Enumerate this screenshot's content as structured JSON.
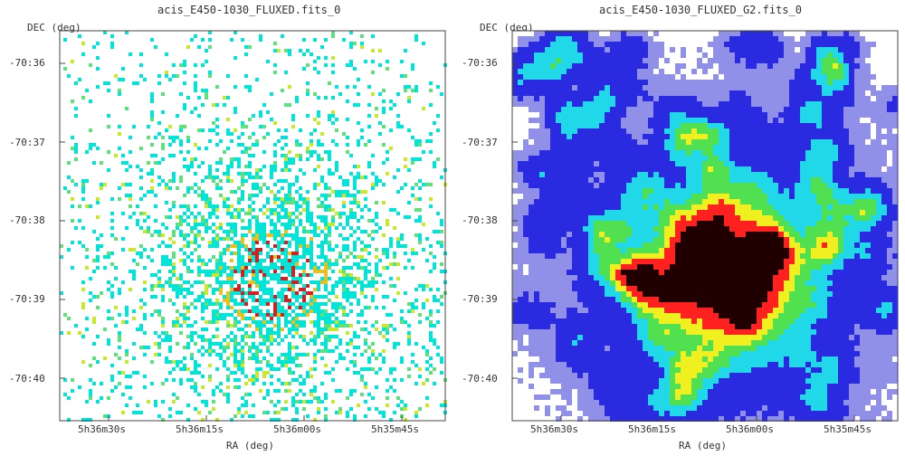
{
  "chart_data": [
    {
      "type": "heatmap",
      "title": "acis_E450-1030_FLUXED.fits_0",
      "xlabel": "RA (deg)",
      "ylabel": "DEC (deg)",
      "x_ticks": [
        "5h36m30s",
        "5h36m15s",
        "5h36m00s",
        "5h35m45s"
      ],
      "y_ticks": [
        "-70:36",
        "-70:37",
        "-70:38",
        "-70:39",
        "-70:40"
      ],
      "description_style": "sparse photon counts",
      "colormap": [
        "#ffffff",
        "#00e5d8",
        "#5ee07a",
        "#c8e82c",
        "#e8c020",
        "#d02020"
      ]
    },
    {
      "type": "heatmap",
      "title": "acis_E450-1030_FLUXED_G2.fits_0",
      "xlabel": "RA (deg)",
      "ylabel": "DEC (deg)",
      "x_ticks": [
        "5h36m30s",
        "5h36m15s",
        "5h36m00s",
        "5h35m45s"
      ],
      "y_ticks": [
        "-70:36",
        "-70:37",
        "-70:38",
        "-70:39",
        "-70:40"
      ],
      "description_style": "smoothed image",
      "colormap": [
        "#ffffff",
        "#9090e8",
        "#2a2ae0",
        "#20d8e8",
        "#50e050",
        "#f0f020",
        "#ff2020",
        "#200000"
      ]
    }
  ]
}
